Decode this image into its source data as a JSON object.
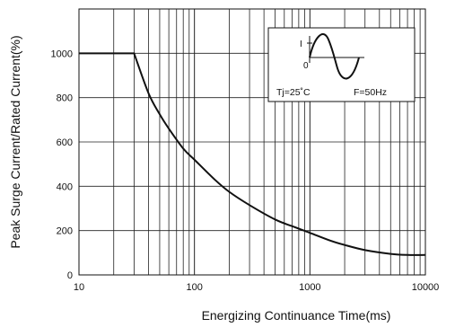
{
  "chart_data": {
    "type": "line",
    "xlabel": "Energizing Continuance Time(ms)",
    "ylabel": "Peak Surge Current/Rated Current(%)",
    "xscale": "log",
    "xlim": [
      10,
      10000
    ],
    "ylim": [
      0,
      1200
    ],
    "grid": true,
    "x_ticks": [
      10,
      100,
      1000,
      10000
    ],
    "x_tick_labels": [
      "10",
      "100",
      "1000",
      "10000"
    ],
    "y_ticks": [
      0,
      200,
      400,
      600,
      800,
      1000
    ],
    "y_tick_labels": [
      "0",
      "200",
      "400",
      "600",
      "800",
      "1000"
    ],
    "series": [
      {
        "x": [
          10,
          20,
          30,
          40,
          50,
          60,
          80,
          100,
          150,
          200,
          300,
          500,
          700,
          1000,
          1500,
          2000,
          3000,
          5000,
          7000,
          10000
        ],
        "y": [
          1000,
          1000,
          1000,
          820,
          725,
          660,
          570,
          520,
          430,
          375,
          315,
          250,
          220,
          190,
          155,
          135,
          112,
          95,
          90,
          90
        ]
      }
    ],
    "inset": {
      "waveform": "sine",
      "axis_label_y": "I",
      "axis_label_origin": "0",
      "caption_tj": "Tj=25˚C",
      "caption_f": "F=50Hz"
    },
    "colors": {
      "line": "#111111",
      "grid": "#222222",
      "background": "#ffffff"
    }
  }
}
